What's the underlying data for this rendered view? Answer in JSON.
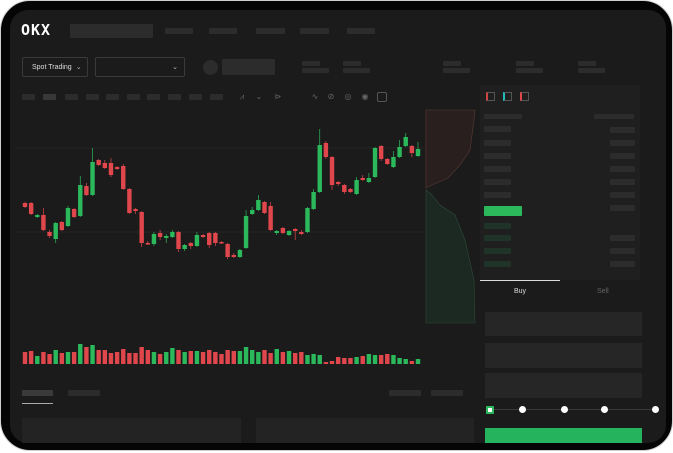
{
  "header": {
    "logo": "OKX"
  },
  "toolbar": {
    "market_selector": "Spot Trading"
  },
  "trade_panel": {
    "buy_tab": "Buy",
    "sell_tab": "Sell"
  },
  "colors": {
    "up": "#2bb95b",
    "down": "#e0474c",
    "background": "#1b1b1b",
    "buy_button": "#25b35d"
  },
  "icons": [
    "chevron-down-icon",
    "indicator-icon",
    "draw-line-icon",
    "ruler-icon",
    "camera-icon",
    "target-icon",
    "fullscreen-icon",
    "orderbook-both-icon",
    "orderbook-bids-icon",
    "orderbook-asks-icon"
  ],
  "chart_data": {
    "type": "candlestick",
    "note_fields": [
      "open",
      "high",
      "low",
      "close"
    ],
    "candles": [
      [
        97,
        98,
        92,
        93
      ],
      [
        97,
        98,
        85,
        86
      ],
      [
        83,
        86,
        82,
        85
      ],
      [
        85,
        92,
        69,
        70
      ],
      [
        68,
        70,
        62,
        64
      ],
      [
        61,
        78,
        57,
        77
      ],
      [
        78,
        79,
        69,
        70
      ],
      [
        74,
        94,
        73,
        92
      ],
      [
        91,
        92,
        82,
        83
      ],
      [
        84,
        124,
        83,
        115
      ],
      [
        114,
        117,
        104,
        105
      ],
      [
        105,
        152,
        104,
        138
      ],
      [
        140,
        141,
        134,
        135
      ],
      [
        137,
        140,
        131,
        132
      ],
      [
        137,
        142,
        123,
        125
      ],
      [
        133,
        134,
        130,
        131
      ],
      [
        134,
        136,
        110,
        111
      ],
      [
        111,
        112,
        86,
        87
      ],
      [
        91,
        92,
        86,
        89
      ],
      [
        88,
        89,
        53,
        57
      ],
      [
        57,
        59,
        55,
        56
      ],
      [
        56,
        68,
        54,
        66
      ],
      [
        67,
        70,
        60,
        63
      ],
      [
        62,
        66,
        57,
        64
      ],
      [
        63,
        70,
        62,
        68
      ],
      [
        68,
        69,
        48,
        51
      ],
      [
        51,
        56,
        49,
        55
      ],
      [
        57,
        58,
        51,
        54
      ],
      [
        54,
        68,
        53,
        65
      ],
      [
        65,
        66,
        62,
        63
      ],
      [
        67,
        68,
        52,
        55
      ],
      [
        67,
        68,
        54,
        57
      ],
      [
        58,
        59,
        56,
        57
      ],
      [
        56,
        57,
        41,
        43
      ],
      [
        45,
        47,
        42,
        43
      ],
      [
        43,
        51,
        42,
        50
      ],
      [
        52,
        90,
        51,
        84
      ],
      [
        86,
        93,
        85,
        90
      ],
      [
        90,
        105,
        89,
        100
      ],
      [
        98,
        99,
        86,
        87
      ],
      [
        94,
        98,
        69,
        70
      ],
      [
        67,
        70,
        65,
        69
      ],
      [
        72,
        73,
        66,
        67
      ],
      [
        65,
        70,
        64,
        69
      ],
      [
        71,
        72,
        60,
        69
      ],
      [
        68,
        70,
        65,
        66
      ],
      [
        68,
        93,
        67,
        92
      ],
      [
        91,
        111,
        90,
        108
      ],
      [
        108,
        171,
        107,
        155
      ],
      [
        157,
        159,
        141,
        143
      ],
      [
        143,
        144,
        110,
        115
      ],
      [
        118,
        119,
        114,
        116
      ],
      [
        115,
        116,
        106,
        108
      ],
      [
        111,
        112,
        107,
        108
      ],
      [
        106,
        123,
        105,
        120
      ],
      [
        122,
        125,
        119,
        120
      ],
      [
        118,
        127,
        117,
        122
      ],
      [
        123,
        153,
        122,
        152
      ],
      [
        154,
        155,
        139,
        141
      ],
      [
        141,
        142,
        135,
        136
      ],
      [
        133,
        149,
        132,
        143
      ],
      [
        143,
        160,
        142,
        153
      ],
      [
        154,
        167,
        153,
        163
      ],
      [
        154,
        155,
        143,
        147
      ],
      [
        144,
        158,
        143,
        151
      ]
    ],
    "volume": [
      12,
      13,
      8,
      12,
      10,
      14,
      11,
      12,
      12,
      20,
      17,
      19,
      14,
      14,
      11,
      12,
      15,
      11,
      11,
      17,
      14,
      12,
      10,
      12,
      16,
      14,
      12,
      13,
      13,
      12,
      14,
      12,
      10,
      14,
      13,
      13,
      17,
      14,
      12,
      14,
      11,
      15,
      12,
      13,
      11,
      12,
      9,
      10,
      9,
      2,
      3,
      7,
      6,
      6,
      7,
      8,
      10,
      9,
      9,
      10,
      9,
      6,
      5,
      3,
      5
    ],
    "slider_value": 0
  }
}
